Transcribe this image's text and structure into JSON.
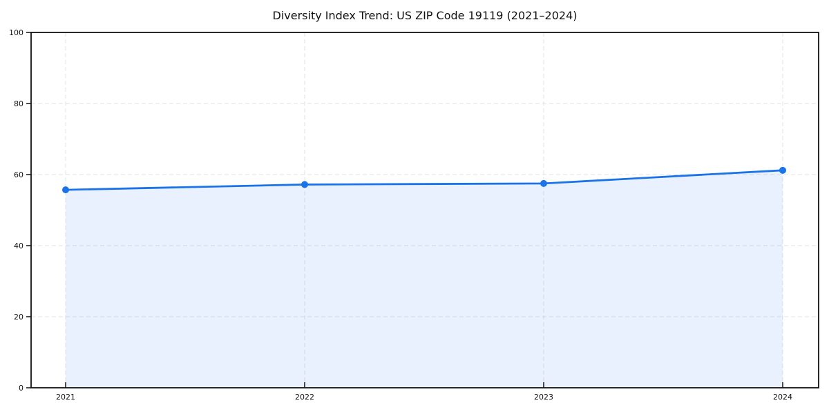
{
  "chart_data": {
    "type": "line",
    "title": "Diversity Index Trend: US ZIP Code 19119 (2021–2024)",
    "x": [
      2021,
      2022,
      2023,
      2024
    ],
    "xtick_labels": [
      "2021",
      "2022",
      "2023",
      "2024"
    ],
    "series": [
      {
        "name": "Diversity Index",
        "values": [
          55.7,
          57.2,
          57.5,
          61.2
        ]
      }
    ],
    "xlabel": "",
    "ylabel": "",
    "ylim": [
      0,
      100
    ],
    "yticks": [
      0,
      20,
      40,
      60,
      80,
      100
    ],
    "grid": true,
    "grid_style": "dashed",
    "legend_position": "none",
    "line_color": "#1a73e8",
    "fill_opacity": 0.1,
    "grid_color": "#e2e2e2",
    "axis_color": "#111111",
    "text_color": "#111111",
    "marker": "circle"
  }
}
